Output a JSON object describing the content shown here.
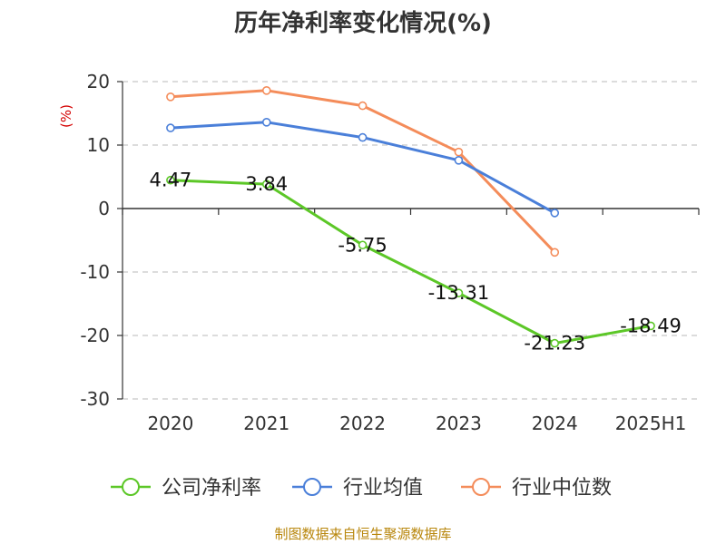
{
  "chart_data": {
    "type": "line",
    "title": "历年净利率变化情况(%)",
    "ylabel": "(%)",
    "xlabel": "",
    "categories": [
      "2020",
      "2021",
      "2022",
      "2023",
      "2024",
      "2025H1"
    ],
    "ylim": [
      -30,
      20
    ],
    "yticks": [
      20,
      10,
      0,
      -10,
      -20,
      -30
    ],
    "grid": true,
    "legend_position": "bottom",
    "series": [
      {
        "name": "公司净利率",
        "color": "#5cc727",
        "values": [
          4.47,
          3.84,
          -5.75,
          -13.31,
          -21.23,
          -18.49
        ],
        "labels": [
          "4.47",
          "3.84",
          "-5.75",
          "-13.31",
          "-21.23",
          "-18.49"
        ]
      },
      {
        "name": "行业均值",
        "color": "#4a7fd9",
        "values": [
          12.7,
          13.6,
          11.2,
          7.6,
          -0.7,
          null
        ]
      },
      {
        "name": "行业中位数",
        "color": "#f48c5a",
        "values": [
          17.6,
          18.6,
          16.2,
          8.9,
          -6.9,
          null
        ]
      }
    ]
  },
  "source_note": "制图数据来自恒生聚源数据库"
}
